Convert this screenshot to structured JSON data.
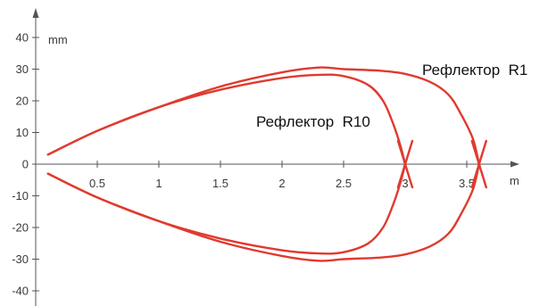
{
  "chart_data": {
    "type": "line",
    "title": "",
    "xlabel": "m",
    "ylabel": "mm",
    "xlim": [
      0,
      4.1
    ],
    "ylim": [
      -45,
      45
    ],
    "x_ticks": [
      0.5,
      1,
      1.5,
      2,
      2.5,
      3,
      3.5
    ],
    "x_tick_labels": [
      "0.5",
      "1",
      "1.5",
      "2",
      "2.5",
      "3",
      "3.5"
    ],
    "y_ticks": [
      40,
      30,
      20,
      10,
      0,
      -10,
      -20,
      -30,
      -40
    ],
    "y_tick_labels": [
      "40",
      "30",
      "20",
      "10",
      "0",
      "-10",
      "-20",
      "-30",
      "-40"
    ],
    "grid": false,
    "legend": "none",
    "color": "#e03a2e",
    "series": [
      {
        "name": "Рефлектор  R1",
        "x": [
          0.1,
          0.5,
          1.0,
          1.5,
          2.0,
          2.3,
          2.5,
          2.8,
          3.0,
          3.2,
          3.35,
          3.45,
          3.55,
          3.6
        ],
        "y": [
          3,
          10.5,
          18,
          24.5,
          29,
          30.5,
          30,
          29.5,
          28.5,
          26,
          22,
          16,
          8,
          0
        ],
        "mirrored": true,
        "crosses_axis_at": 3.6
      },
      {
        "name": "Рефлектор  R10",
        "x": [
          0.1,
          0.5,
          1.0,
          1.5,
          2.0,
          2.3,
          2.5,
          2.7,
          2.82,
          2.9,
          2.96,
          3.0
        ],
        "y": [
          3,
          10.5,
          18,
          23.5,
          27.2,
          28.2,
          27.8,
          25,
          20,
          13,
          6,
          0
        ],
        "mirrored": true,
        "crosses_axis_at": 3.0
      }
    ]
  }
}
